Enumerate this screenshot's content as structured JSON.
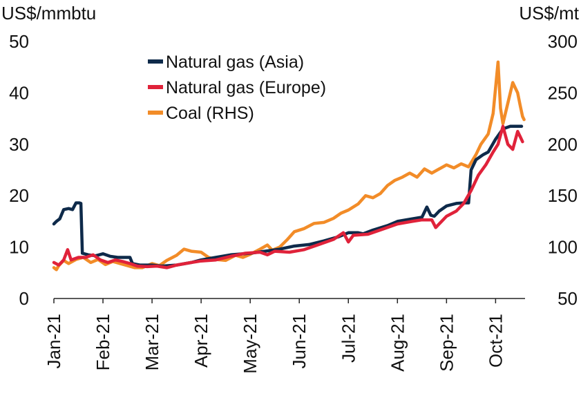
{
  "chart_data": {
    "type": "line",
    "left_axis": {
      "unit": "US$/mmbtu",
      "ticks": [
        0,
        10,
        20,
        30,
        40,
        50
      ],
      "ylim": [
        0,
        50
      ]
    },
    "right_axis": {
      "unit": "US$/mt",
      "ticks": [
        50,
        100,
        150,
        200,
        250,
        300
      ],
      "ylim": [
        50,
        300
      ]
    },
    "x_axis": {
      "categories": [
        "Jan-21",
        "Feb-21",
        "Mar-21",
        "Apr-21",
        "May-21",
        "Jun-21",
        "Jul-21",
        "Aug-21",
        "Sep-21",
        "Oct-21"
      ],
      "xlim": [
        0,
        9.6
      ]
    },
    "legend": {
      "placement": "top-center",
      "entries": [
        {
          "label": "Natural gas (Asia)",
          "color": "#0e2a4a"
        },
        {
          "label": "Natural gas (Europe)",
          "color": "#e0223a"
        },
        {
          "label": "Coal (RHS)",
          "color": "#f28c28"
        }
      ]
    },
    "grid": false,
    "series": [
      {
        "name": "Natural gas (Asia)",
        "axis": "left",
        "color": "#0e2a4a",
        "points": [
          [
            0,
            14.5
          ],
          [
            0.05,
            15
          ],
          [
            0.12,
            15.5
          ],
          [
            0.2,
            17.3
          ],
          [
            0.3,
            17.5
          ],
          [
            0.38,
            17.3
          ],
          [
            0.45,
            18.6
          ],
          [
            0.52,
            18.6
          ],
          [
            0.55,
            18.5
          ],
          [
            0.58,
            8.8
          ],
          [
            0.7,
            8.5
          ],
          [
            0.85,
            8.3
          ],
          [
            1.0,
            8.7
          ],
          [
            1.15,
            8.2
          ],
          [
            1.3,
            8.0
          ],
          [
            1.45,
            8.0
          ],
          [
            1.55,
            8.0
          ],
          [
            1.6,
            6.8
          ],
          [
            1.75,
            6.5
          ],
          [
            2.0,
            6.5
          ],
          [
            2.2,
            6.3
          ],
          [
            2.5,
            6.5
          ],
          [
            2.8,
            7.0
          ],
          [
            3.0,
            7.5
          ],
          [
            3.3,
            8.0
          ],
          [
            3.6,
            8.5
          ],
          [
            4.0,
            8.8
          ],
          [
            4.3,
            9.2
          ],
          [
            4.6,
            9.6
          ],
          [
            4.9,
            10.2
          ],
          [
            5.2,
            10.5
          ],
          [
            5.5,
            11.2
          ],
          [
            5.8,
            12.0
          ],
          [
            6.0,
            12.8
          ],
          [
            6.2,
            12.8
          ],
          [
            6.3,
            12.6
          ],
          [
            6.5,
            13.3
          ],
          [
            6.8,
            14.2
          ],
          [
            7.0,
            15.0
          ],
          [
            7.3,
            15.5
          ],
          [
            7.5,
            15.8
          ],
          [
            7.6,
            17.8
          ],
          [
            7.68,
            16.2
          ],
          [
            7.75,
            16.0
          ],
          [
            7.85,
            17.0
          ],
          [
            8.0,
            18.0
          ],
          [
            8.2,
            18.5
          ],
          [
            8.35,
            18.6
          ],
          [
            8.45,
            18.6
          ],
          [
            8.5,
            25.0
          ],
          [
            8.6,
            27.0
          ],
          [
            8.75,
            28.0
          ],
          [
            8.85,
            28.5
          ],
          [
            9.0,
            31.0
          ],
          [
            9.15,
            33.0
          ],
          [
            9.3,
            33.5
          ],
          [
            9.45,
            33.5
          ],
          [
            9.53,
            33.5
          ]
        ]
      },
      {
        "name": "Natural gas (Europe)",
        "axis": "left",
        "color": "#e0223a",
        "points": [
          [
            0,
            7.0
          ],
          [
            0.1,
            6.5
          ],
          [
            0.2,
            7.5
          ],
          [
            0.28,
            9.5
          ],
          [
            0.35,
            7.5
          ],
          [
            0.5,
            8.0
          ],
          [
            0.65,
            8.0
          ],
          [
            0.8,
            8.5
          ],
          [
            0.95,
            7.5
          ],
          [
            1.1,
            7.0
          ],
          [
            1.25,
            7.5
          ],
          [
            1.4,
            7.2
          ],
          [
            1.55,
            6.8
          ],
          [
            1.7,
            6.3
          ],
          [
            1.9,
            6.2
          ],
          [
            2.1,
            6.3
          ],
          [
            2.3,
            6.0
          ],
          [
            2.5,
            6.5
          ],
          [
            2.8,
            7.0
          ],
          [
            3.0,
            7.3
          ],
          [
            3.3,
            7.5
          ],
          [
            3.6,
            8.2
          ],
          [
            3.9,
            8.8
          ],
          [
            4.2,
            9.0
          ],
          [
            4.35,
            8.5
          ],
          [
            4.5,
            9.2
          ],
          [
            4.8,
            9.0
          ],
          [
            5.1,
            9.5
          ],
          [
            5.4,
            10.5
          ],
          [
            5.7,
            11.5
          ],
          [
            5.9,
            12.8
          ],
          [
            6.0,
            11.0
          ],
          [
            6.1,
            12.3
          ],
          [
            6.4,
            12.5
          ],
          [
            6.7,
            13.5
          ],
          [
            7.0,
            14.5
          ],
          [
            7.3,
            15.0
          ],
          [
            7.5,
            15.3
          ],
          [
            7.7,
            15.3
          ],
          [
            7.78,
            13.8
          ],
          [
            7.9,
            15.0
          ],
          [
            8.0,
            16.0
          ],
          [
            8.2,
            17.0
          ],
          [
            8.35,
            18.5
          ],
          [
            8.5,
            21.0
          ],
          [
            8.65,
            24.0
          ],
          [
            8.8,
            26.0
          ],
          [
            8.95,
            28.5
          ],
          [
            9.05,
            30.0
          ],
          [
            9.15,
            33.5
          ],
          [
            9.25,
            30.0
          ],
          [
            9.35,
            29.0
          ],
          [
            9.45,
            32.5
          ],
          [
            9.5,
            31.5
          ],
          [
            9.55,
            30.5
          ]
        ]
      },
      {
        "name": "Coal (RHS)",
        "axis": "right",
        "color": "#f28c28",
        "points": [
          [
            0,
            80
          ],
          [
            0.05,
            78
          ],
          [
            0.1,
            82
          ],
          [
            0.2,
            87
          ],
          [
            0.3,
            84
          ],
          [
            0.45,
            88
          ],
          [
            0.6,
            90
          ],
          [
            0.75,
            85
          ],
          [
            0.9,
            88
          ],
          [
            1.05,
            83
          ],
          [
            1.2,
            86
          ],
          [
            1.35,
            84
          ],
          [
            1.5,
            82
          ],
          [
            1.65,
            80
          ],
          [
            1.8,
            80
          ],
          [
            2.0,
            84
          ],
          [
            2.15,
            82
          ],
          [
            2.3,
            87
          ],
          [
            2.5,
            92
          ],
          [
            2.65,
            98
          ],
          [
            2.8,
            96
          ],
          [
            3.0,
            95
          ],
          [
            3.15,
            90
          ],
          [
            3.3,
            88
          ],
          [
            3.5,
            87
          ],
          [
            3.7,
            92
          ],
          [
            3.85,
            90
          ],
          [
            4.0,
            93
          ],
          [
            4.2,
            98
          ],
          [
            4.35,
            102
          ],
          [
            4.45,
            97
          ],
          [
            4.6,
            100
          ],
          [
            4.75,
            107
          ],
          [
            4.9,
            115
          ],
          [
            5.1,
            118
          ],
          [
            5.3,
            123
          ],
          [
            5.5,
            124
          ],
          [
            5.7,
            128
          ],
          [
            5.85,
            133
          ],
          [
            6.0,
            136
          ],
          [
            6.2,
            142
          ],
          [
            6.35,
            150
          ],
          [
            6.5,
            148
          ],
          [
            6.65,
            152
          ],
          [
            6.8,
            160
          ],
          [
            6.95,
            165
          ],
          [
            7.1,
            168
          ],
          [
            7.25,
            172
          ],
          [
            7.4,
            168
          ],
          [
            7.55,
            176
          ],
          [
            7.7,
            172
          ],
          [
            7.85,
            176
          ],
          [
            8.0,
            180
          ],
          [
            8.15,
            177
          ],
          [
            8.3,
            181
          ],
          [
            8.45,
            178
          ],
          [
            8.6,
            190
          ],
          [
            8.7,
            200
          ],
          [
            8.85,
            210
          ],
          [
            8.95,
            230
          ],
          [
            9.05,
            280
          ],
          [
            9.1,
            235
          ],
          [
            9.15,
            220
          ],
          [
            9.25,
            240
          ],
          [
            9.35,
            260
          ],
          [
            9.45,
            250
          ],
          [
            9.5,
            238
          ],
          [
            9.55,
            227
          ],
          [
            9.58,
            224
          ]
        ]
      }
    ]
  }
}
